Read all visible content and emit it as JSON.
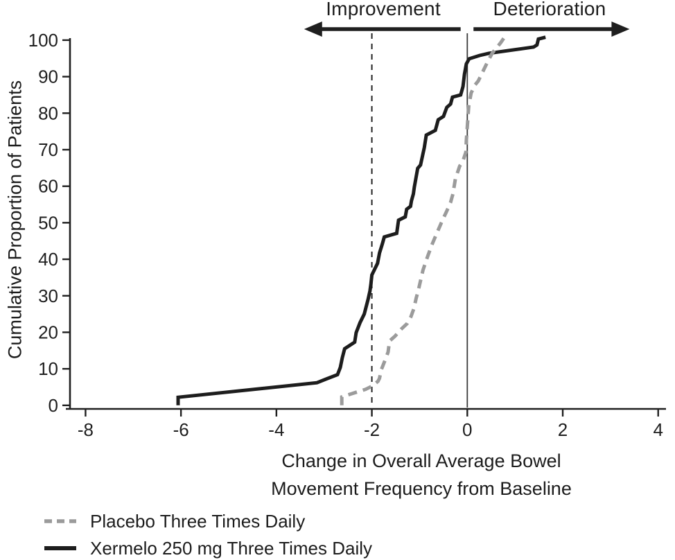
{
  "chart_data": {
    "type": "line",
    "subtype": "cumulative-distribution-step",
    "title": "",
    "ylabel": "Cumulative Proportion of Patients",
    "xlabel_line1": "Change in Overall Average Bowel",
    "xlabel_line2": "Movement Frequency from Baseline",
    "xlim": [
      -8.34,
      4.12
    ],
    "ylim": [
      -0.6,
      101.5
    ],
    "x_ticks": [
      -8,
      -6,
      -4,
      -2,
      0,
      2,
      4
    ],
    "y_ticks": [
      0,
      10,
      20,
      30,
      40,
      50,
      60,
      70,
      80,
      90,
      100
    ],
    "grid": false,
    "legend_position": "bottom-left",
    "axis_color": "#1f1f1f",
    "reference_lines": [
      {
        "x": -2,
        "style": "dashed",
        "color": "#222222"
      },
      {
        "x": 0,
        "style": "solid",
        "color": "#3a3a3a"
      }
    ],
    "annotations": {
      "improvement": {
        "label": "Improvement",
        "direction": "left",
        "x_tail": -0.14,
        "x_tip": -3.42
      },
      "deterioration": {
        "label": "Deterioration",
        "direction": "right",
        "x_tail": 0.13,
        "x_tip": 3.4
      }
    },
    "series": [
      {
        "id": "placebo-curve",
        "name": "Placebo Three Times Daily",
        "color": "#9b9b9b",
        "dash": "13,9",
        "points": [
          [
            -2.63,
            0
          ],
          [
            -2.63,
            2.3
          ],
          [
            -2.42,
            3.2
          ],
          [
            -2.13,
            4.4
          ],
          [
            -1.99,
            5.3
          ],
          [
            -1.87,
            6.6
          ],
          [
            -1.84,
            7.4
          ],
          [
            -1.8,
            9.8
          ],
          [
            -1.7,
            13.1
          ],
          [
            -1.66,
            14.6
          ],
          [
            -1.63,
            17.6
          ],
          [
            -1.51,
            19.0
          ],
          [
            -1.39,
            20.8
          ],
          [
            -1.26,
            22.4
          ],
          [
            -1.18,
            24.3
          ],
          [
            -1.12,
            26.5
          ],
          [
            -1.07,
            29.4
          ],
          [
            -1.03,
            31.3
          ],
          [
            -0.93,
            37.0
          ],
          [
            -0.83,
            40.8
          ],
          [
            -0.74,
            44.0
          ],
          [
            -0.64,
            47.1
          ],
          [
            -0.52,
            50.7
          ],
          [
            -0.42,
            53.5
          ],
          [
            -0.35,
            55.6
          ],
          [
            -0.3,
            57.9
          ],
          [
            -0.25,
            62.0
          ],
          [
            -0.16,
            65.5
          ],
          [
            -0.09,
            67.0
          ],
          [
            -0.03,
            69.3
          ],
          [
            -0.02,
            72.5
          ],
          [
            0.0,
            76.3
          ],
          [
            0.03,
            82.0
          ],
          [
            0.08,
            85.5
          ],
          [
            0.16,
            87.7
          ],
          [
            0.23,
            88.8
          ],
          [
            0.42,
            93.9
          ],
          [
            0.52,
            96.4
          ],
          [
            0.7,
            99.3
          ],
          [
            0.78,
            100.8
          ]
        ]
      },
      {
        "id": "xermelo-curve",
        "name": "Xermelo 250 mg Three Times Daily",
        "color": "#1d1d1d",
        "dash": null,
        "points": [
          [
            -6.06,
            0
          ],
          [
            -6.06,
            2.2
          ],
          [
            -3.15,
            6.2
          ],
          [
            -2.96,
            7.2
          ],
          [
            -2.72,
            8.4
          ],
          [
            -2.66,
            10.4
          ],
          [
            -2.62,
            13.0
          ],
          [
            -2.57,
            15.5
          ],
          [
            -2.36,
            17.3
          ],
          [
            -2.33,
            19.9
          ],
          [
            -2.25,
            22.6
          ],
          [
            -2.16,
            25.0
          ],
          [
            -2.08,
            29.0
          ],
          [
            -2.04,
            31.3
          ],
          [
            -2.02,
            33.2
          ],
          [
            -2.0,
            35.7
          ],
          [
            -1.88,
            38.9
          ],
          [
            -1.84,
            41.7
          ],
          [
            -1.78,
            44.2
          ],
          [
            -1.74,
            46.1
          ],
          [
            -1.48,
            47.1
          ],
          [
            -1.44,
            50.7
          ],
          [
            -1.3,
            51.6
          ],
          [
            -1.27,
            53.7
          ],
          [
            -1.19,
            54.5
          ],
          [
            -1.17,
            56.0
          ],
          [
            -1.13,
            57.9
          ],
          [
            -1.11,
            59.8
          ],
          [
            -1.04,
            64.9
          ],
          [
            -0.98,
            65.8
          ],
          [
            -0.9,
            70.6
          ],
          [
            -0.86,
            74.0
          ],
          [
            -0.67,
            75.3
          ],
          [
            -0.61,
            78.2
          ],
          [
            -0.5,
            79.1
          ],
          [
            -0.43,
            81.6
          ],
          [
            -0.35,
            82.5
          ],
          [
            -0.31,
            84.4
          ],
          [
            -0.14,
            85.0
          ],
          [
            -0.09,
            87.3
          ],
          [
            -0.06,
            90.7
          ],
          [
            -0.02,
            93.5
          ],
          [
            0.04,
            94.9
          ],
          [
            0.26,
            95.8
          ],
          [
            0.45,
            96.4
          ],
          [
            1.39,
            98.1
          ],
          [
            1.46,
            98.7
          ],
          [
            1.49,
            100.3
          ],
          [
            1.64,
            100.8
          ]
        ]
      }
    ]
  }
}
